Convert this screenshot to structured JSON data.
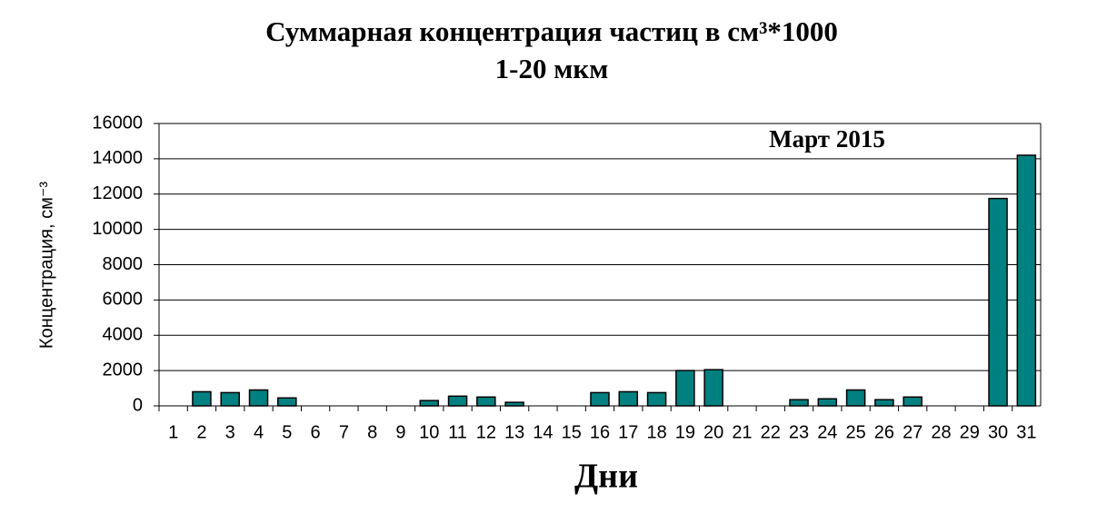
{
  "chart_data": {
    "type": "bar",
    "title": "Суммарная концентрация частиц в см³*1000",
    "subtitle": "1-20 мкм",
    "annotation": "Март 2015",
    "x_label": "Дни",
    "y_label": "Концентрация, см⁻³",
    "categories": [
      "1",
      "2",
      "3",
      "4",
      "5",
      "6",
      "7",
      "8",
      "9",
      "10",
      "11",
      "12",
      "13",
      "14",
      "15",
      "16",
      "17",
      "18",
      "19",
      "20",
      "21",
      "22",
      "23",
      "24",
      "25",
      "26",
      "27",
      "28",
      "29",
      "30",
      "31"
    ],
    "values": [
      null,
      800,
      750,
      900,
      450,
      null,
      null,
      null,
      null,
      300,
      550,
      500,
      200,
      null,
      null,
      750,
      800,
      750,
      2000,
      2050,
      null,
      null,
      350,
      400,
      900,
      350,
      500,
      null,
      null,
      11750,
      14200
    ],
    "color": "#008080",
    "ylim": [
      0,
      16000
    ],
    "yticks": [
      0,
      2000,
      4000,
      6000,
      8000,
      10000,
      12000,
      14000,
      16000
    ],
    "grid": true
  }
}
